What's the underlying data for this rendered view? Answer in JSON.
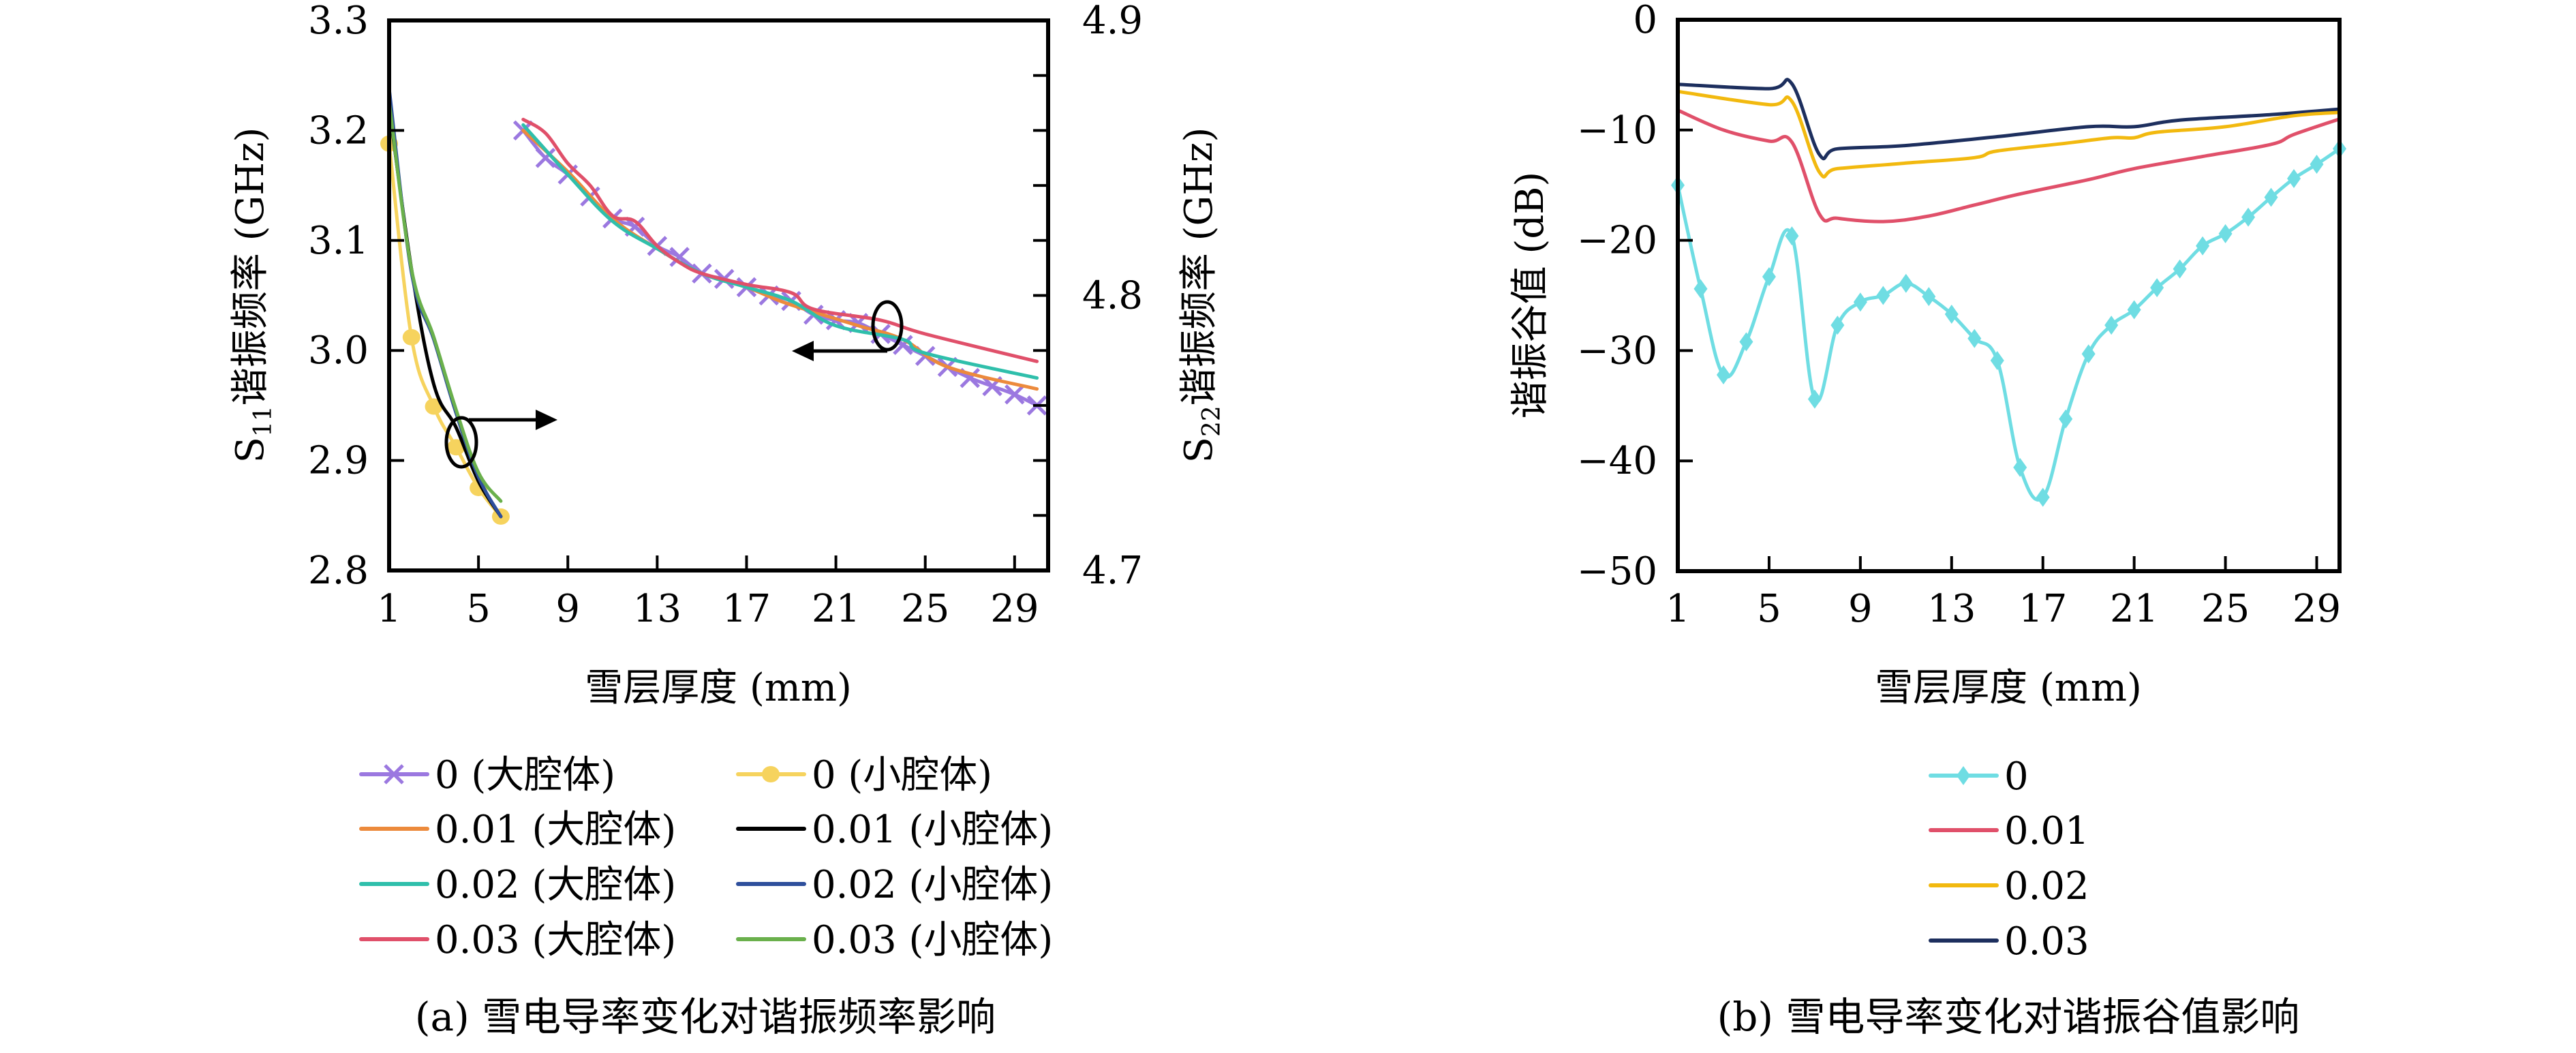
{
  "chart_data": [
    {
      "id": "a",
      "type": "line",
      "caption": "(a) 雪电导率变化对谐振频率影响",
      "xlabel": "雪层厚度 (mm)",
      "ylabel_left": "S11谐振频率 (GHz)",
      "ylabel_right": "S22谐振频率 (GHz)",
      "xlim": [
        1,
        30.5
      ],
      "ylim_left": [
        2.8,
        3.3
      ],
      "ylim_right": [
        4.7,
        4.9
      ],
      "xticks": [
        1,
        5,
        9,
        13,
        17,
        21,
        25,
        29
      ],
      "yticks_left": [
        "2.8",
        "2.9",
        "3.0",
        "3.1",
        "3.2",
        "3.3"
      ],
      "yticks_right": [
        "4.7",
        "4.8",
        "4.9"
      ],
      "right_minor_tick_step": 0.02,
      "grid": false,
      "legend_position": "below",
      "annotations": [
        {
          "type": "ellipse-arrow",
          "target": "small cavity curves",
          "points_to": "left axis (S11)",
          "direction": "right"
        },
        {
          "type": "ellipse-arrow",
          "target": "large cavity curves",
          "points_to": "right axis (S22)",
          "direction": "left"
        }
      ],
      "series": [
        {
          "name": "0 (大腔体)",
          "axis": "right",
          "color": "#9b78e0",
          "marker": "x",
          "x": [
            7,
            8,
            9,
            10,
            11,
            12,
            13,
            14,
            15,
            16,
            17,
            18,
            19,
            20,
            21,
            22,
            23,
            24,
            25,
            26,
            27,
            28,
            29,
            30
          ],
          "y": [
            4.86,
            4.85,
            4.844,
            4.836,
            4.828,
            4.825,
            4.818,
            4.814,
            4.808,
            4.806,
            4.803,
            4.8,
            4.798,
            4.793,
            4.791,
            4.79,
            4.786,
            4.782,
            4.778,
            4.774,
            4.77,
            4.767,
            4.764,
            4.76
          ]
        },
        {
          "name": "0.01 (大腔体)",
          "axis": "right",
          "color": "#ec8a3c",
          "marker": "none",
          "x": [
            7,
            9,
            11,
            13,
            15,
            17,
            18.5,
            20,
            22,
            24,
            26,
            30
          ],
          "y": [
            4.86,
            4.845,
            4.828,
            4.817,
            4.808,
            4.803,
            4.798,
            4.794,
            4.789,
            4.784,
            4.774,
            4.766
          ]
        },
        {
          "name": "0.02 (大腔体)",
          "axis": "right",
          "color": "#2fbfab",
          "marker": "none",
          "x": [
            7,
            9,
            11,
            13,
            15,
            17,
            19,
            21,
            24,
            25,
            30
          ],
          "y": [
            4.862,
            4.844,
            4.827,
            4.817,
            4.808,
            4.803,
            4.798,
            4.789,
            4.784,
            4.779,
            4.77
          ]
        },
        {
          "name": "0.03 (大腔体)",
          "axis": "right",
          "color": "#e0506a",
          "marker": "none",
          "x": [
            7,
            8,
            9,
            10,
            11,
            12,
            13,
            14,
            15,
            17,
            19,
            20,
            23,
            25,
            30
          ],
          "y": [
            4.864,
            4.859,
            4.848,
            4.84,
            4.829,
            4.827,
            4.818,
            4.812,
            4.808,
            4.804,
            4.801,
            4.795,
            4.791,
            4.786,
            4.776
          ]
        },
        {
          "name": "0 (小腔体)",
          "axis": "left",
          "color": "#f6d35e",
          "marker": "circle",
          "x": [
            1,
            2,
            3,
            4,
            5,
            6
          ],
          "y": [
            3.188,
            3.012,
            2.949,
            2.912,
            2.875,
            2.849
          ]
        },
        {
          "name": "0.01 (小腔体)",
          "axis": "left",
          "color": "#000000",
          "marker": "none",
          "x": [
            1,
            2,
            3,
            4,
            5,
            6
          ],
          "y": [
            3.222,
            3.074,
            2.969,
            2.93,
            2.881,
            2.849
          ]
        },
        {
          "name": "0.02 (小腔体)",
          "axis": "left",
          "color": "#2e4f9c",
          "marker": "none",
          "x": [
            1,
            2,
            3,
            4,
            5,
            6
          ],
          "y": [
            3.238,
            3.071,
            3.01,
            2.943,
            2.885,
            2.849
          ]
        },
        {
          "name": "0.03 (小腔体)",
          "axis": "left",
          "color": "#6ab04c",
          "marker": "none",
          "x": [
            1,
            2,
            3,
            4,
            5,
            6
          ],
          "y": [
            3.226,
            3.074,
            3.012,
            2.946,
            2.889,
            2.863
          ]
        }
      ],
      "legend_order": [
        [
          0,
          4
        ],
        [
          1,
          5
        ],
        [
          2,
          6
        ],
        [
          3,
          7
        ]
      ]
    },
    {
      "id": "b",
      "type": "line",
      "caption": "(b) 雪电导率变化对谐振谷值影响",
      "xlabel": "雪层厚度 (mm)",
      "ylabel": "谐振谷值 (dB)",
      "xlim": [
        1,
        30
      ],
      "ylim": [
        -50,
        0
      ],
      "xticks": [
        1,
        5,
        9,
        13,
        17,
        21,
        25,
        29
      ],
      "yticks": [
        "−50",
        "−40",
        "−30",
        "−20",
        "−10",
        "0"
      ],
      "grid": false,
      "legend_position": "below",
      "series": [
        {
          "name": "0",
          "color": "#6fdde3",
          "marker": "diamond",
          "x": [
            1,
            2,
            3,
            4,
            5,
            6,
            7,
            8,
            9,
            10,
            11,
            12,
            13,
            14,
            15,
            16,
            17,
            18,
            19,
            20,
            21,
            22,
            23,
            24,
            25,
            26,
            27,
            28,
            29,
            30
          ],
          "y": [
            -15.0,
            -24.4,
            -32.2,
            -29.2,
            -23.3,
            -19.6,
            -34.4,
            -27.7,
            -25.6,
            -25.0,
            -23.9,
            -25.1,
            -26.7,
            -28.9,
            -30.9,
            -40.6,
            -43.3,
            -36.2,
            -30.3,
            -27.7,
            -26.3,
            -24.3,
            -22.6,
            -20.5,
            -19.4,
            -17.9,
            -16.1,
            -14.4,
            -13.1,
            -11.7
          ]
        },
        {
          "name": "0.01",
          "color": "#e0506a",
          "marker": "none",
          "x": [
            1,
            3,
            5,
            6,
            7.2,
            8,
            10,
            12,
            14,
            16,
            19,
            21,
            24,
            27,
            28,
            30
          ],
          "y": [
            -8.2,
            -10.0,
            -11.0,
            -11.1,
            -17.6,
            -18.0,
            -18.3,
            -17.8,
            -16.8,
            -15.8,
            -14.5,
            -13.5,
            -12.4,
            -11.3,
            -10.4,
            -9.0
          ]
        },
        {
          "name": "0.02",
          "color": "#f2b90f",
          "marker": "none",
          "x": [
            1,
            5,
            6,
            7.2,
            8,
            11,
            14,
            15,
            18,
            20,
            21,
            22,
            25,
            28,
            30
          ],
          "y": [
            -6.5,
            -7.7,
            -7.4,
            -13.8,
            -13.5,
            -13.0,
            -12.5,
            -11.9,
            -11.2,
            -10.7,
            -10.7,
            -10.2,
            -9.7,
            -8.7,
            -8.4
          ]
        },
        {
          "name": "0.03",
          "color": "#1d2f5e",
          "marker": "none",
          "x": [
            1,
            5,
            6,
            7.2,
            8,
            11,
            15,
            19,
            21,
            23,
            27,
            30
          ],
          "y": [
            -5.85,
            -6.25,
            -5.8,
            -12.2,
            -11.7,
            -11.4,
            -10.6,
            -9.7,
            -9.7,
            -9.1,
            -8.6,
            -8.1
          ]
        }
      ]
    }
  ]
}
